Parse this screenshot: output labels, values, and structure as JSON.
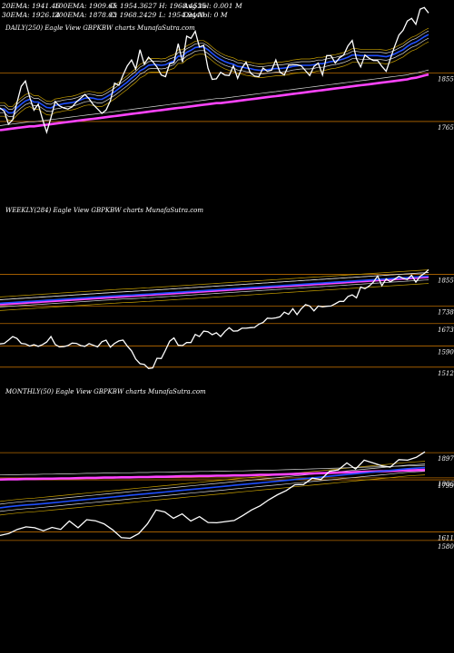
{
  "header": {
    "line1": [
      "20EMA: 1941.46",
      "100EMA: 1909.65",
      "O: 1954.3627",
      "H: 1968.4525",
      "Avg Vol: 0.001 M"
    ],
    "line2": [
      "30EMA: 1926.14",
      "200EMA: 1878.03",
      "C: 1968.2429",
      "L: 1954.9440",
      "Day Vol: 0  M"
    ]
  },
  "colors": {
    "background": "#000000",
    "price": "#ffffff",
    "ema_short": "#1f4fff",
    "ema_long": "#ff44ff",
    "level_line": "#b86a00",
    "ema_thin_gold": "#c8a000",
    "ema_thin_white": "#d8d8d8"
  },
  "chart_data": [
    {
      "type": "line",
      "title": "DAILY(250) Eagle  View  GBPKBW charts MunafaSutra.com",
      "ylim": [
        1738,
        1990
      ],
      "levels": [
        1855,
        1765
      ],
      "ticks": [
        "1855",
        "1765"
      ],
      "series": [
        {
          "role": "price",
          "values": [
            1790,
            1784,
            1760,
            1768,
            1800,
            1830,
            1840,
            1810,
            1786,
            1797,
            1770,
            1745,
            1772,
            1802,
            1794,
            1790,
            1788,
            1792,
            1801,
            1808,
            1815,
            1807,
            1796,
            1788,
            1780,
            1786,
            1803,
            1836,
            1832,
            1851,
            1868,
            1879,
            1862,
            1898,
            1871,
            1884,
            1876,
            1866,
            1851,
            1848,
            1872,
            1874,
            1909,
            1875,
            1923,
            1919,
            1932,
            1903,
            1906,
            1864,
            1843,
            1844,
            1856,
            1851,
            1850,
            1868,
            1845,
            1864,
            1875,
            1855,
            1849,
            1848,
            1864,
            1858,
            1860,
            1879,
            1856,
            1851,
            1869,
            1870,
            1870,
            1868,
            1859,
            1850,
            1867,
            1873,
            1851,
            1887,
            1887,
            1873,
            1883,
            1888,
            1905,
            1915,
            1881,
            1866,
            1888,
            1882,
            1878,
            1878,
            1867,
            1858,
            1881,
            1904,
            1925,
            1934,
            1951,
            1956,
            1945,
            1973,
            1976,
            1966
          ]
        },
        {
          "role": "ema_short",
          "values": [
            1788,
            1788,
            1781,
            1781,
            1790,
            1797,
            1803,
            1806,
            1801,
            1801,
            1796,
            1791,
            1790,
            1795,
            1796,
            1798,
            1799,
            1800,
            1802,
            1805,
            1808,
            1809,
            1808,
            1806,
            1806,
            1810,
            1815,
            1820,
            1826,
            1832,
            1838,
            1845,
            1851,
            1859,
            1863,
            1869,
            1870,
            1870,
            1869,
            1870,
            1874,
            1877,
            1886,
            1886,
            1893,
            1897,
            1902,
            1903,
            1903,
            1898,
            1891,
            1885,
            1880,
            1876,
            1873,
            1871,
            1867,
            1866,
            1864,
            1863,
            1861,
            1860,
            1860,
            1861,
            1862,
            1863,
            1863,
            1864,
            1865,
            1867,
            1868,
            1869,
            1869,
            1869,
            1870,
            1872,
            1872,
            1874,
            1876,
            1877,
            1879,
            1881,
            1884,
            1888,
            1888,
            1887,
            1887,
            1887,
            1887,
            1887,
            1886,
            1885,
            1887,
            1890,
            1894,
            1898,
            1904,
            1909,
            1912,
            1917,
            1922,
            1926
          ]
        },
        {
          "role": "ema_long",
          "values": [
            1749,
            1750,
            1751,
            1752,
            1753,
            1754,
            1755,
            1756,
            1756,
            1757,
            1758,
            1759,
            1760,
            1761,
            1762,
            1763,
            1764,
            1765,
            1766,
            1767,
            1768,
            1769,
            1770,
            1771,
            1772,
            1773,
            1774,
            1775,
            1776,
            1777,
            1778,
            1779,
            1780,
            1781,
            1782,
            1783,
            1784,
            1785,
            1786,
            1787,
            1788,
            1789,
            1790,
            1791,
            1792,
            1793,
            1794,
            1795,
            1796,
            1797,
            1798,
            1799,
            1799,
            1800,
            1801,
            1802,
            1803,
            1804,
            1805,
            1806,
            1807,
            1808,
            1809,
            1810,
            1811,
            1812,
            1813,
            1814,
            1815,
            1816,
            1817,
            1818,
            1819,
            1820,
            1821,
            1822,
            1823,
            1824,
            1825,
            1826,
            1827,
            1828,
            1829,
            1830,
            1831,
            1832,
            1833,
            1834,
            1835,
            1836,
            1837,
            1838,
            1839,
            1840,
            1841,
            1842,
            1843,
            1845,
            1846,
            1848,
            1850,
            1852
          ]
        }
      ]
    },
    {
      "type": "line",
      "title": "WEEKLY(284) Eagle  View  GBPKBW charts MunafaSutra.com",
      "ylim": [
        1488,
        1880
      ],
      "levels": [
        1855,
        1738,
        1673,
        1590,
        1512
      ],
      "ticks": [
        "1855",
        "1738",
        "1673",
        "1590",
        "1512"
      ],
      "series": [
        {
          "role": "price",
          "values": [
            1598,
            1600,
            1612,
            1625,
            1618,
            1600,
            1598,
            1590,
            1595,
            1589,
            1595,
            1605,
            1625,
            1596,
            1587,
            1588,
            1592,
            1601,
            1600,
            1592,
            1589,
            1599,
            1593,
            1587,
            1606,
            1612,
            1586,
            1600,
            1609,
            1612,
            1590,
            1572,
            1542,
            1525,
            1522,
            1507,
            1509,
            1545,
            1544,
            1575,
            1608,
            1620,
            1593,
            1592,
            1603,
            1603,
            1633,
            1625,
            1645,
            1643,
            1632,
            1639,
            1625,
            1644,
            1658,
            1645,
            1646,
            1656,
            1656,
            1658,
            1659,
            1671,
            1677,
            1693,
            1692,
            1694,
            1698,
            1715,
            1707,
            1728,
            1706,
            1728,
            1743,
            1738,
            1720,
            1738,
            1735,
            1737,
            1738,
            1746,
            1755,
            1755,
            1773,
            1779,
            1768,
            1808,
            1802,
            1812,
            1826,
            1849,
            1813,
            1838,
            1827,
            1837,
            1848,
            1840,
            1836,
            1852,
            1826,
            1848,
            1858,
            1872
          ]
        },
        {
          "role": "ema_short",
          "values": [
            1748,
            1749,
            1750,
            1751,
            1752,
            1753,
            1754,
            1755,
            1756,
            1757,
            1758,
            1759,
            1760,
            1761,
            1762,
            1763,
            1764,
            1765,
            1766,
            1767,
            1768,
            1769,
            1770,
            1771,
            1772,
            1773,
            1774,
            1775,
            1776,
            1777,
            1778,
            1778,
            1779,
            1780,
            1781,
            1782,
            1783,
            1784,
            1785,
            1786,
            1787,
            1788,
            1789,
            1790,
            1791,
            1792,
            1793,
            1794,
            1795,
            1796,
            1797,
            1798,
            1799,
            1800,
            1801,
            1802,
            1803,
            1804,
            1805,
            1806,
            1807,
            1808,
            1809,
            1810,
            1811,
            1812,
            1813,
            1814,
            1815,
            1816,
            1817,
            1818,
            1819,
            1820,
            1821,
            1822,
            1823,
            1824,
            1825,
            1826,
            1827,
            1828,
            1829,
            1830,
            1831,
            1832,
            1833,
            1834,
            1835,
            1836,
            1837,
            1838,
            1839,
            1840,
            1841,
            1842,
            1843,
            1844,
            1845,
            1846,
            1847,
            1848
          ]
        },
        {
          "role": "ema_long",
          "values": [
            1744,
            1745,
            1746,
            1747,
            1748,
            1749,
            1750,
            1751,
            1752,
            1753,
            1754,
            1755,
            1756,
            1757,
            1758,
            1759,
            1760,
            1761,
            1762,
            1763,
            1764,
            1765,
            1766,
            1767,
            1768,
            1769,
            1770,
            1771,
            1772,
            1773,
            1774,
            1775,
            1776,
            1777,
            1778,
            1779,
            1780,
            1781,
            1782,
            1783,
            1784,
            1785,
            1786,
            1787,
            1788,
            1789,
            1790,
            1791,
            1792,
            1793,
            1794,
            1795,
            1796,
            1797,
            1798,
            1799,
            1800,
            1801,
            1802,
            1803,
            1804,
            1805,
            1806,
            1807,
            1808,
            1809,
            1810,
            1811,
            1812,
            1813,
            1814,
            1815,
            1816,
            1817,
            1818,
            1819,
            1820,
            1821,
            1822,
            1823,
            1824,
            1825,
            1826,
            1827,
            1828,
            1829,
            1830,
            1831,
            1832,
            1833,
            1834,
            1835,
            1836,
            1837,
            1838,
            1839,
            1840,
            1841,
            1842,
            1843,
            1844,
            1845
          ]
        }
      ]
    },
    {
      "type": "line",
      "title": "MONTHLY(50) Eagle  View  GBPKBW charts MunafaSutra.com",
      "ylim": [
        1560,
        1940
      ],
      "levels": [
        1897,
        1806,
        1799,
        1611,
        1580
      ],
      "ticks": [
        "1897",
        "1806",
        "1799",
        "1611",
        "1580"
      ],
      "series": [
        {
          "role": "price",
          "values": [
            1598,
            1605,
            1620,
            1629,
            1626,
            1615,
            1627,
            1620,
            1650,
            1626,
            1655,
            1651,
            1640,
            1618,
            1590,
            1588,
            1605,
            1640,
            1690,
            1683,
            1660,
            1676,
            1650,
            1666,
            1645,
            1644,
            1648,
            1652,
            1670,
            1690,
            1705,
            1727,
            1745,
            1760,
            1781,
            1782,
            1805,
            1800,
            1830,
            1835,
            1860,
            1838,
            1870,
            1860,
            1850,
            1845,
            1872,
            1870,
            1880,
            1900
          ]
        },
        {
          "role": "ema_short",
          "values": [
            1698,
            1702,
            1705,
            1708,
            1710,
            1713,
            1716,
            1719,
            1722,
            1725,
            1728,
            1731,
            1734,
            1737,
            1740,
            1743,
            1746,
            1749,
            1752,
            1755,
            1758,
            1761,
            1764,
            1767,
            1770,
            1773,
            1776,
            1779,
            1782,
            1785,
            1788,
            1791,
            1794,
            1797,
            1800,
            1803,
            1806,
            1809,
            1812,
            1815,
            1818,
            1821,
            1824,
            1827,
            1830,
            1833,
            1836,
            1839,
            1841,
            1843
          ]
        },
        {
          "role": "ema_long",
          "values": [
            1800,
            1801,
            1801,
            1802,
            1802,
            1803,
            1803,
            1804,
            1804,
            1805,
            1806,
            1806,
            1807,
            1807,
            1808,
            1808,
            1809,
            1809,
            1810,
            1810,
            1811,
            1812,
            1812,
            1813,
            1813,
            1814,
            1814,
            1815,
            1815,
            1816,
            1817,
            1817,
            1818,
            1819,
            1820,
            1821,
            1822,
            1823,
            1824,
            1825,
            1826,
            1827,
            1828,
            1829,
            1830,
            1831,
            1832,
            1833,
            1834,
            1835
          ]
        }
      ]
    }
  ]
}
